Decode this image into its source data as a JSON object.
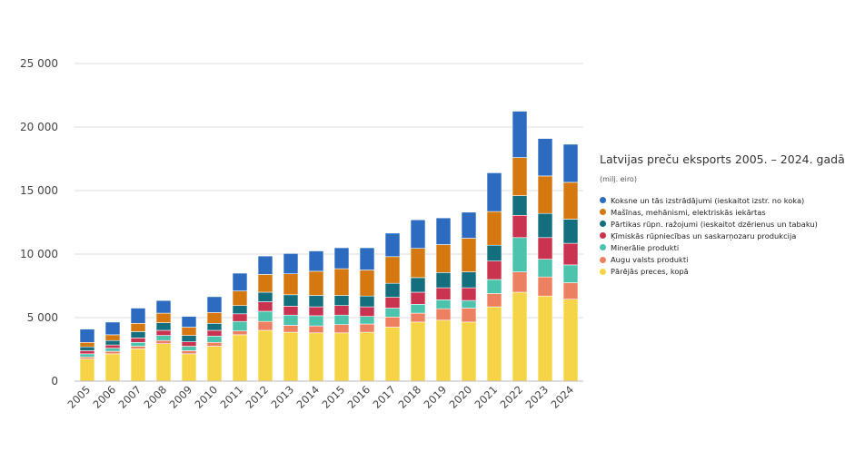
{
  "chart_data": {
    "type": "bar",
    "stacked": true,
    "title": "Latvijas preču eksports 2005. – 2024. gadā",
    "subtitle": "(milj. eiro)",
    "categories": [
      "2005",
      "2006",
      "2007",
      "2008",
      "2009",
      "2010",
      "2011",
      "2012",
      "2013",
      "2014",
      "2015",
      "2016",
      "2017",
      "2018",
      "2019",
      "2020",
      "2021",
      "2022",
      "2023",
      "2024"
    ],
    "ylim": [
      0,
      25000
    ],
    "yticks": [
      0,
      5000,
      10000,
      15000,
      20000,
      25000
    ],
    "ytick_labels": [
      "0",
      "5 000",
      "10 000",
      "15 000",
      "20 000",
      "25 000"
    ],
    "grid": true,
    "legend_position": "right",
    "series": [
      {
        "name": "Pārējās preces, kopā",
        "color": "#f5d547",
        "values": [
          1750,
          2150,
          2550,
          2950,
          2150,
          2750,
          3650,
          4000,
          3850,
          3800,
          3800,
          3850,
          4250,
          4650,
          4800,
          4650,
          5850,
          7000,
          6700,
          6450
        ]
      },
      {
        "name": "Augu valsts produkti",
        "color": "#ee8062",
        "values": [
          150,
          200,
          200,
          250,
          250,
          300,
          300,
          700,
          550,
          550,
          650,
          650,
          800,
          700,
          900,
          1100,
          1050,
          1600,
          1500,
          1300
        ]
      },
      {
        "name": "Minerālie produkti",
        "color": "#4cc3ad",
        "values": [
          250,
          250,
          300,
          400,
          350,
          500,
          750,
          800,
          800,
          800,
          750,
          600,
          700,
          700,
          700,
          600,
          1100,
          2700,
          1400,
          1400
        ]
      },
      {
        "name": "Ķīmiskās rūpniecības un saskarņozaru produkcija",
        "color": "#c9334f",
        "values": [
          250,
          250,
          350,
          400,
          350,
          450,
          600,
          750,
          700,
          700,
          750,
          750,
          850,
          950,
          950,
          1000,
          1450,
          1750,
          1700,
          1700
        ]
      },
      {
        "name": "Pārtikas rūpn. ražojumi (ieskaitot dzērienus un tabaku)",
        "color": "#136e7e",
        "values": [
          300,
          350,
          500,
          600,
          500,
          550,
          650,
          750,
          900,
          900,
          800,
          850,
          1100,
          1150,
          1200,
          1250,
          1250,
          1550,
          1900,
          1900
        ]
      },
      {
        "name": "Mašīnas, mehānismi, elektriskās iekārtas",
        "color": "#d4780f",
        "values": [
          350,
          450,
          650,
          750,
          650,
          850,
          1150,
          1400,
          1650,
          1900,
          2100,
          2050,
          2100,
          2300,
          2200,
          2650,
          2650,
          3000,
          2950,
          2900
        ]
      },
      {
        "name": "Koksne un tās izstrādājumi (ieskaitot izstr. no koka)",
        "color": "#2c6bbf",
        "values": [
          1050,
          1000,
          1200,
          1000,
          850,
          1250,
          1400,
          1450,
          1600,
          1600,
          1650,
          1750,
          1850,
          2250,
          2100,
          2050,
          3050,
          3650,
          2950,
          3000
        ]
      }
    ]
  }
}
